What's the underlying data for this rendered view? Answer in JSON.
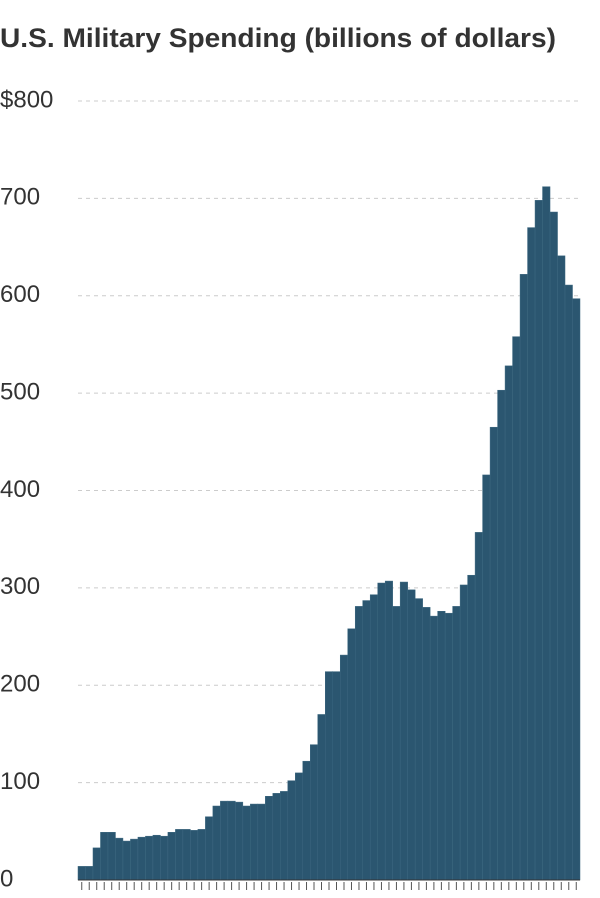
{
  "chart_data": {
    "type": "bar",
    "title": "U.S. Military Spending (billions of dollars)",
    "categories": [
      null,
      null,
      null,
      null,
      null,
      null,
      null,
      null,
      null,
      null,
      null,
      null,
      null,
      null,
      null,
      null,
      null,
      null,
      null,
      null,
      null,
      null,
      null,
      null,
      null,
      null,
      null,
      null,
      null,
      null,
      null,
      null,
      null,
      null,
      null,
      null,
      null,
      null,
      null,
      null,
      null,
      null,
      null,
      null,
      null,
      null,
      null,
      null,
      null,
      null,
      null,
      null,
      null,
      null,
      null,
      null,
      null,
      null,
      null,
      null,
      null,
      null,
      null,
      null,
      null,
      null,
      null
    ],
    "values": [
      14,
      14,
      33,
      49,
      49,
      43,
      40,
      42,
      44,
      45,
      46,
      45,
      49,
      52,
      52,
      51,
      52,
      65,
      76,
      81,
      81,
      80,
      76,
      78,
      78,
      86,
      89,
      91,
      102,
      110,
      122,
      139,
      170,
      214,
      214,
      231,
      258,
      281,
      287,
      293,
      305,
      307,
      281,
      306,
      298,
      289,
      280,
      271,
      276,
      274,
      281,
      303,
      313,
      357,
      416,
      465,
      503,
      528,
      558,
      622,
      670,
      698,
      712,
      686,
      641,
      611,
      597
    ],
    "color": "#2b5670",
    "ylim": [
      0,
      800
    ],
    "yticks": [
      0,
      100,
      200,
      300,
      400,
      500,
      600,
      700,
      {
        "value": 800,
        "label": "$800"
      }
    ],
    "grid": true
  }
}
